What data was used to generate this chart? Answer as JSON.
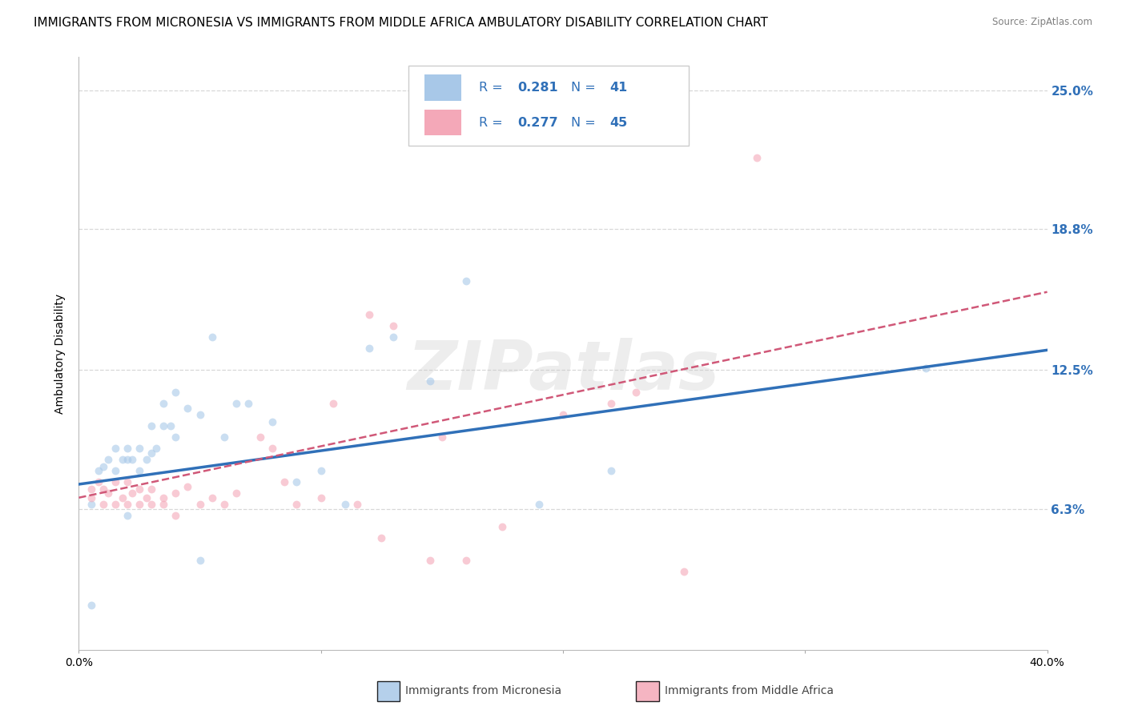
{
  "title": "IMMIGRANTS FROM MICRONESIA VS IMMIGRANTS FROM MIDDLE AFRICA AMBULATORY DISABILITY CORRELATION CHART",
  "source": "Source: ZipAtlas.com",
  "ylabel": "Ambulatory Disability",
  "xlim": [
    0.0,
    0.4
  ],
  "ylim": [
    0.0,
    0.265
  ],
  "yticks": [
    0.063,
    0.125,
    0.188,
    0.25
  ],
  "ytick_labels": [
    "6.3%",
    "12.5%",
    "18.8%",
    "25.0%"
  ],
  "xticks": [
    0.0,
    0.1,
    0.2,
    0.3,
    0.4
  ],
  "xtick_labels": [
    "0.0%",
    "",
    "",
    "",
    "40.0%"
  ],
  "blue_scatter_x": [
    0.005,
    0.008,
    0.01,
    0.012,
    0.015,
    0.015,
    0.018,
    0.02,
    0.02,
    0.022,
    0.025,
    0.025,
    0.028,
    0.03,
    0.03,
    0.032,
    0.035,
    0.035,
    0.038,
    0.04,
    0.04,
    0.045,
    0.05,
    0.055,
    0.06,
    0.065,
    0.07,
    0.08,
    0.09,
    0.1,
    0.11,
    0.12,
    0.13,
    0.145,
    0.16,
    0.19,
    0.22,
    0.35,
    0.005,
    0.02,
    0.05
  ],
  "blue_scatter_y": [
    0.02,
    0.08,
    0.082,
    0.085,
    0.08,
    0.09,
    0.085,
    0.085,
    0.09,
    0.085,
    0.08,
    0.09,
    0.085,
    0.088,
    0.1,
    0.09,
    0.1,
    0.11,
    0.1,
    0.095,
    0.115,
    0.108,
    0.105,
    0.14,
    0.095,
    0.11,
    0.11,
    0.102,
    0.075,
    0.08,
    0.065,
    0.135,
    0.14,
    0.12,
    0.165,
    0.065,
    0.08,
    0.126,
    0.065,
    0.06,
    0.04
  ],
  "pink_scatter_x": [
    0.005,
    0.005,
    0.008,
    0.01,
    0.01,
    0.012,
    0.015,
    0.015,
    0.018,
    0.02,
    0.02,
    0.022,
    0.025,
    0.025,
    0.028,
    0.03,
    0.03,
    0.035,
    0.035,
    0.04,
    0.04,
    0.045,
    0.05,
    0.055,
    0.06,
    0.065,
    0.075,
    0.08,
    0.085,
    0.09,
    0.1,
    0.115,
    0.12,
    0.13,
    0.15,
    0.16,
    0.175,
    0.2,
    0.22,
    0.23,
    0.25,
    0.105,
    0.125,
    0.145,
    0.28
  ],
  "pink_scatter_y": [
    0.072,
    0.068,
    0.075,
    0.072,
    0.065,
    0.07,
    0.075,
    0.065,
    0.068,
    0.075,
    0.065,
    0.07,
    0.072,
    0.065,
    0.068,
    0.072,
    0.065,
    0.068,
    0.065,
    0.07,
    0.06,
    0.073,
    0.065,
    0.068,
    0.065,
    0.07,
    0.095,
    0.09,
    0.075,
    0.065,
    0.068,
    0.065,
    0.15,
    0.145,
    0.095,
    0.04,
    0.055,
    0.105,
    0.11,
    0.115,
    0.035,
    0.11,
    0.05,
    0.04,
    0.22
  ],
  "blue_line": {
    "x0": 0.0,
    "x1": 0.4,
    "y0": 0.074,
    "y1": 0.134
  },
  "pink_line": {
    "x0": 0.0,
    "x1": 0.4,
    "y0": 0.068,
    "y1": 0.16
  },
  "blue_color": "#a8c8e8",
  "pink_color": "#f4a8b8",
  "blue_line_color": "#3070b8",
  "pink_line_color": "#d05878",
  "right_label_color": "#3070b8",
  "grid_color": "#d8d8d8",
  "background": "#ffffff",
  "watermark": "ZIPatlas",
  "legend_blue_R": "0.281",
  "legend_blue_N": "41",
  "legend_pink_R": "0.277",
  "legend_pink_N": "45",
  "legend_label_blue": "Immigrants from Micronesia",
  "legend_label_pink": "Immigrants from Middle Africa",
  "legend_text_color": "#3070b8",
  "title_fontsize": 11,
  "tick_fontsize": 10,
  "ylabel_fontsize": 10,
  "scatter_size": 50,
  "scatter_alpha": 0.6
}
